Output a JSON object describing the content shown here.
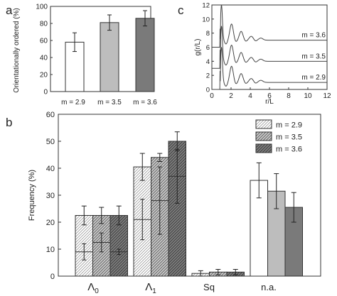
{
  "chart_data": [
    {
      "panel": "a",
      "type": "bar",
      "categories": [
        "m = 2.9",
        "m = 3.5",
        "m = 3.6"
      ],
      "values": [
        58,
        81,
        86
      ],
      "errors": [
        11,
        9,
        9
      ],
      "ylabel": "Orientationally ordered (%)",
      "ylim": [
        0,
        100
      ],
      "yticks": [
        "0",
        "20",
        "40",
        "60",
        "80",
        "100"
      ],
      "colors": [
        "#ffffff",
        "#bdbdbd",
        "#7a7a7a"
      ]
    },
    {
      "panel": "c",
      "type": "line",
      "xlabel": "r/L",
      "ylabel": "g(r/L)",
      "xlim": [
        0,
        12
      ],
      "ylim": [
        0,
        12
      ],
      "xticks": [
        "0",
        "2",
        "4",
        "6",
        "8",
        "10",
        "12"
      ],
      "yticks": [
        "0",
        "2",
        "4",
        "6",
        "8",
        "10",
        "12"
      ],
      "series": [
        {
          "name": "m = 3.6",
          "offset": 6
        },
        {
          "name": "m = 3.5",
          "offset": 3
        },
        {
          "name": "m = 2.9",
          "offset": 0
        }
      ],
      "peaks": [
        {
          "r": 1.0,
          "h": 5.0
        },
        {
          "r": 2.05,
          "h": 2.3
        },
        {
          "r": 3.05,
          "h": 1.25
        },
        {
          "r": 4.1,
          "h": 0.55
        },
        {
          "r": 5.1,
          "h": 0.3
        }
      ]
    },
    {
      "panel": "b",
      "type": "bar",
      "categories": [
        "Λ0",
        "Λ1",
        "Sq",
        "n.a."
      ],
      "series": [
        {
          "name": "m = 2.9",
          "values": [
            22.5,
            40.5,
            1,
            35.5
          ],
          "errors": [
            3.5,
            5,
            1,
            6.5
          ],
          "inner": [
            9,
            21,
            null,
            null
          ],
          "inner_errors": [
            3,
            7.5,
            null,
            null
          ]
        },
        {
          "name": "m = 3.5",
          "values": [
            22.5,
            44,
            1.5,
            31.5
          ],
          "errors": [
            3,
            1.5,
            1,
            6.5
          ],
          "inner": [
            12.5,
            28,
            null,
            null
          ],
          "inner_errors": [
            3.5,
            12.5,
            null,
            null
          ]
        },
        {
          "name": "m = 3.6",
          "values": [
            22.5,
            50,
            1.5,
            25.5
          ],
          "errors": [
            3.5,
            3.5,
            1,
            5.5
          ],
          "inner": [
            9,
            37,
            null,
            null
          ],
          "inner_errors": [
            1,
            10,
            null,
            null
          ]
        }
      ],
      "ylabel": "Frequency (%)",
      "ylim": [
        0,
        60
      ],
      "yticks": [
        "0",
        "10",
        "20",
        "30",
        "40",
        "50",
        "60"
      ],
      "colors": [
        "#ffffff",
        "#bdbdbd",
        "#7a7a7a"
      ],
      "legend": "top-right"
    }
  ],
  "panels": {
    "a": "a",
    "b": "b",
    "c": "c"
  }
}
